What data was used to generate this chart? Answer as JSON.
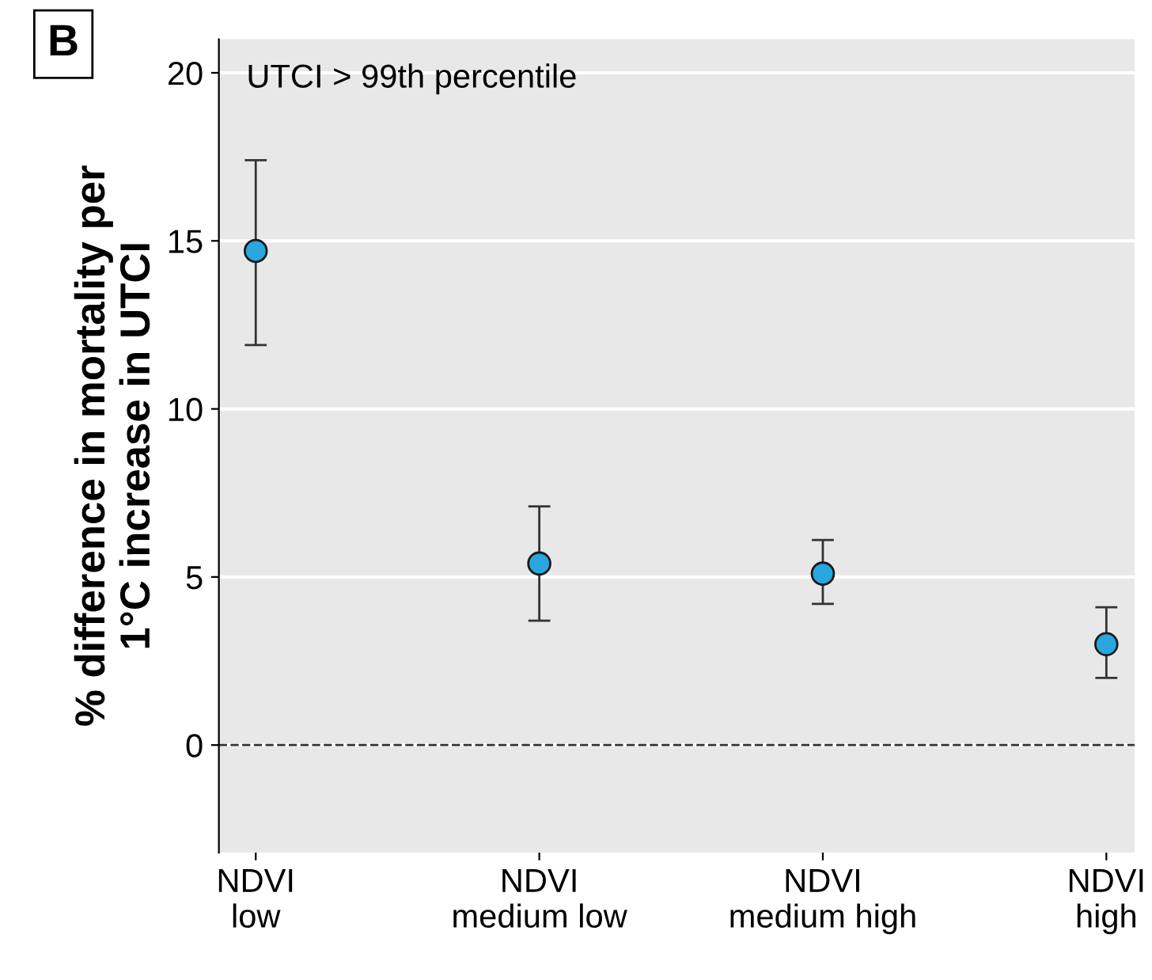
{
  "chart_data": {
    "type": "scatter",
    "ylabel": "% difference in mortality per\n1°C increase in UTCI",
    "categories": [
      "NDVI\nlow",
      "NDVI\nmedium low",
      "NDVI\nmedium high",
      "NDVI\nhigh"
    ],
    "values": [
      14.7,
      5.4,
      5.1,
      3.0
    ],
    "errors": [
      [
        11.9,
        17.4
      ],
      [
        3.7,
        7.1
      ],
      [
        4.2,
        6.1
      ],
      [
        2.0,
        4.1
      ]
    ],
    "color": "#2aa6de",
    "marker": "circle",
    "ylim": [
      -3.2,
      21
    ],
    "yticks": [
      0,
      5,
      10,
      15,
      20
    ],
    "grid": "y",
    "ref_lines": [
      {
        "axis": "y",
        "value": 0,
        "line_style": "dashed",
        "color": "#333333"
      }
    ],
    "annotations": [
      "B",
      "UTCI > 99th percentile"
    ]
  }
}
